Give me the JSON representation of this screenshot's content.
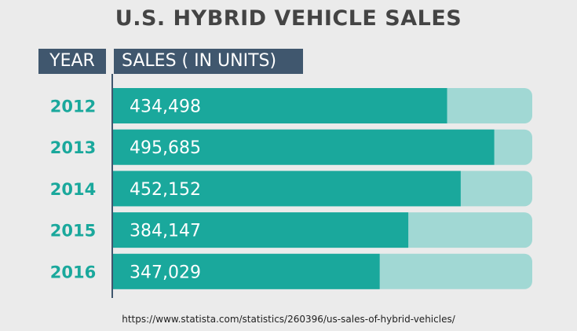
{
  "header": {
    "year_label": "YEAR",
    "sales_label": "SALES ( IN UNITS)"
  },
  "source_url": "https://www.statista.com/statistics/260396/us-sales-of-hybrid-vehicles/",
  "colors": {
    "bar": "#1aa89c",
    "track": "#a1d8d4",
    "year_text": "#1aa89c",
    "header_bg": "#40576e",
    "axis": "#40576e"
  },
  "chart_data": {
    "type": "bar",
    "orientation": "horizontal",
    "title": "U.S. HYBRID VEHICLE SALES",
    "xlabel": "SALES ( IN UNITS)",
    "ylabel": "YEAR",
    "categories": [
      "2012",
      "2013",
      "2014",
      "2015",
      "2016"
    ],
    "values": [
      434498,
      495685,
      452152,
      384147,
      347029
    ],
    "value_labels": [
      "434,498",
      "495,685",
      "452,152",
      "384,147",
      "347,029"
    ],
    "xlim": [
      0,
      545000
    ]
  }
}
